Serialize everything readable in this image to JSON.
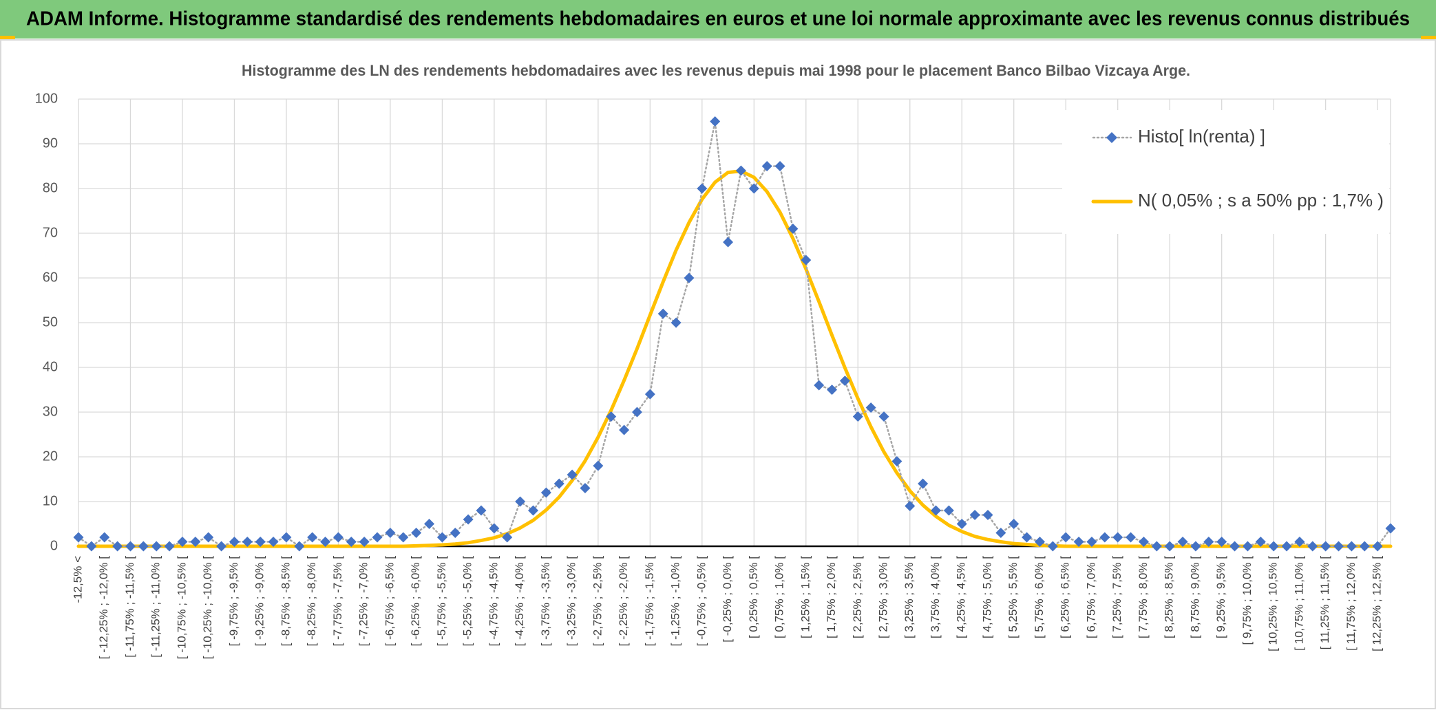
{
  "header": {
    "title": "ADAM Informe. Histogramme standardisé des rendements hebdomadaires en euros et une loi normale approximante avec les revenus connus distribués"
  },
  "chart_data": {
    "type": "line",
    "title": "Histogramme des LN des rendements hebdomadaires avec les revenus depuis mai 1998 pour le placement Banco Bilbao Vizcaya Arge.",
    "categories": [
      "-12,5% <",
      null,
      "[ -12,25% ; -12,0% [",
      null,
      "[ -11,75% ; -11,5% [",
      null,
      "[ -11,25% ; -11,0% [",
      null,
      "[ -10,75% ; -10,5% [",
      null,
      "[ -10,25% ; -10,0% [",
      null,
      "[ -9,75% ; -9,5% [",
      null,
      "[ -9,25% ; -9,0% [",
      null,
      "[ -8,75% ; -8,5% [",
      null,
      "[ -8,25% ; -8,0% [",
      null,
      "[ -7,75% ; -7,5% [",
      null,
      "[ -7,25% ; -7,0% [",
      null,
      "[ -6,75% ; -6,5% [",
      null,
      "[ -6,25% ; -6,0% [",
      null,
      "[ -5,75% ; -5,5% [",
      null,
      "[ -5,25% ; -5,0% [",
      null,
      "[ -4,75% ; -4,5% [",
      null,
      "[ -4,25% ; -4,0% [",
      null,
      "[ -3,75% ; -3,5% [",
      null,
      "[ -3,25% ; -3,0% [",
      null,
      "[ -2,75% ; -2,5% [",
      null,
      "[ -2,25% ; -2,0% [",
      null,
      "[ -1,75% ; -1,5% [",
      null,
      "[ -1,25% ; -1,0% [",
      null,
      "[ -0,75% ; -0,5% [",
      null,
      "[ -0,25% ; 0,0% [",
      null,
      "[ 0,25% ; 0,5% [",
      null,
      "[ 0,75% ; 1,0% [",
      null,
      "[ 1,25% ; 1,5% [",
      null,
      "[ 1,75% ; 2,0% [",
      null,
      "[ 2,25% ; 2,5% [",
      null,
      "[ 2,75% ; 3,0% [",
      null,
      "[ 3,25% ; 3,5% [",
      null,
      "[ 3,75% ; 4,0% [",
      null,
      "[ 4,25% ; 4,5% [",
      null,
      "[ 4,75% ; 5,0% [",
      null,
      "[ 5,25% ; 5,5% [",
      null,
      "[ 5,75% ; 6,0% [",
      null,
      "[ 6,25% ; 6,5% [",
      null,
      "[ 6,75% ; 7,0% [",
      null,
      "[ 7,25% ; 7,5% [",
      null,
      "[ 7,75% ; 8,0% [",
      null,
      "[ 8,25% ; 8,5% [",
      null,
      "[ 8,75% ; 9,0% [",
      null,
      "[ 9,25% ; 9,5% [",
      null,
      "[ 9,75% ; 10,0% [",
      null,
      "[ 10,25% ; 10,5% [",
      null,
      "[ 10,75% ; 11,0% [",
      null,
      "[ 11,25% ; 11,5% [",
      null,
      "[ 11,75% ; 12,0% [",
      null,
      "[ 12,25% ; 12,5% [",
      null
    ],
    "series": [
      {
        "name": "Histo[ ln(renta) ]",
        "color": "#4472c4",
        "line_color": "#a6a6a6",
        "line_style": "dotted",
        "marker": "diamond",
        "values": [
          2,
          0,
          2,
          0,
          0,
          0,
          0,
          0,
          1,
          1,
          2,
          0,
          1,
          1,
          1,
          1,
          2,
          0,
          2,
          1,
          2,
          1,
          1,
          2,
          3,
          2,
          3,
          5,
          2,
          3,
          6,
          8,
          4,
          2,
          10,
          8,
          12,
          14,
          16,
          13,
          18,
          29,
          26,
          30,
          34,
          52,
          50,
          60,
          80,
          95,
          68,
          84,
          80,
          85,
          85,
          71,
          64,
          36,
          35,
          37,
          29,
          31,
          29,
          19,
          9,
          14,
          8,
          8,
          5,
          7,
          7,
          3,
          5,
          2,
          1,
          0,
          2,
          1,
          1,
          2,
          2,
          2,
          1,
          0,
          0,
          1,
          0,
          1,
          1,
          0,
          0,
          1,
          0,
          0,
          1,
          0,
          0,
          0,
          0,
          0,
          0,
          4
        ]
      },
      {
        "name": "N( 0,05% ; s a 50% pp : 1,7% )",
        "color": "#ffc000",
        "line_style": "solid",
        "marker": "none",
        "values": [
          0,
          0,
          0,
          0,
          0,
          0,
          0,
          0,
          0,
          0,
          0,
          0,
          0,
          0,
          0,
          0,
          0,
          0,
          0,
          0,
          0,
          0,
          0,
          0,
          0,
          0,
          0.1,
          0.2,
          0.3,
          0.5,
          0.8,
          1.3,
          1.9,
          2.8,
          4.1,
          5.8,
          8.1,
          11.0,
          14.7,
          19.1,
          24.4,
          30.4,
          37.1,
          44.2,
          51.7,
          59.1,
          66.2,
          72.4,
          77.6,
          81.4,
          83.6,
          83.9,
          82.5,
          79.3,
          74.7,
          68.8,
          62.0,
          54.7,
          47.2,
          39.9,
          33.0,
          26.7,
          21.1,
          16.4,
          12.4,
          9.2,
          6.7,
          4.7,
          3.3,
          2.2,
          1.5,
          1.0,
          0.6,
          0.4,
          0.2,
          0.1,
          0,
          0,
          0,
          0,
          0,
          0,
          0,
          0,
          0,
          0,
          0,
          0,
          0,
          0,
          0,
          0,
          0,
          0,
          0,
          0,
          0,
          0,
          0,
          0,
          0,
          0
        ]
      }
    ],
    "ylim": [
      0,
      100
    ],
    "yticks": [
      0,
      10,
      20,
      30,
      40,
      50,
      60,
      70,
      80,
      90,
      100
    ],
    "grid": true,
    "legend": "top-right"
  }
}
